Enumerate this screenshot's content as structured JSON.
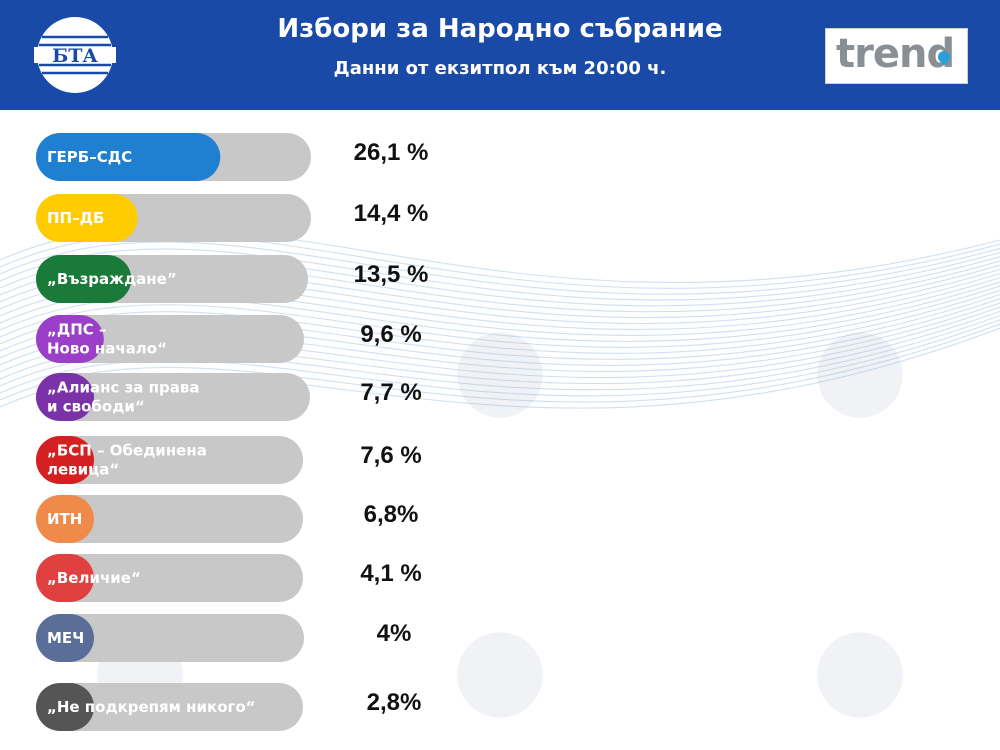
{
  "header": {
    "title": "Избори за Народно събрание",
    "subtitle": "Данни от екзитпол към 20:00 ч.",
    "logo_left": "БТА",
    "logo_right": "trend",
    "background_color": "#1a4aa8"
  },
  "chart_data": {
    "type": "bar",
    "orientation": "horizontal",
    "title": "Избори за Народно събрание",
    "subtitle": "Данни от екзитпол към 20:00 ч.",
    "xlim": [
      0,
      40
    ],
    "grid": false,
    "categories": [
      "ГЕРБ–СДС",
      "ПП–ДБ",
      "„Възраждане”",
      "„ДПС –\nНово начало“",
      "„Алианс за права\nи свободи“",
      "„БСП – Обединена\nлевица“",
      "ИТН",
      "„Величие“",
      "МЕЧ",
      "„Не подкрепям никого“"
    ],
    "values": [
      26.1,
      14.4,
      13.5,
      9.6,
      7.7,
      7.6,
      6.8,
      4.1,
      4,
      2.8
    ],
    "value_labels": [
      "26,1 %",
      "14,4 %",
      "13,5 %",
      "9,6 %",
      "7,7 %",
      "7,6 %",
      "6,8%",
      "4,1 %",
      "4%",
      "2,8%"
    ],
    "colors": [
      "#1f7fd0",
      "#ffcc00",
      "#1a7a3a",
      "#9b3fc9",
      "#7a32a8",
      "#d42020",
      "#f08a4b",
      "#e04040",
      "#5a6e99",
      "#555555"
    ],
    "track_color": "#c8c8c8"
  }
}
